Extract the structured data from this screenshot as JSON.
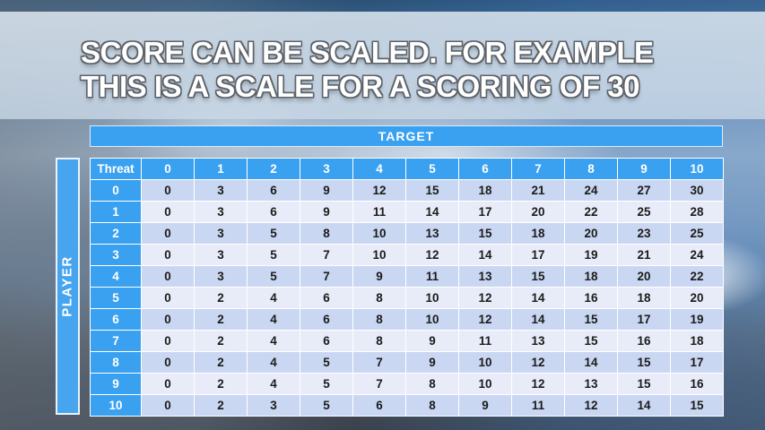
{
  "title": {
    "line1": "SCORE CAN BE SCALED. FOR EXAMPLE",
    "line2": "THIS IS A SCALE FOR A SCORING OF 30"
  },
  "table": {
    "target_label": "TARGET",
    "player_label": "PLAYER",
    "corner_label": "Threat",
    "column_headers": [
      "0",
      "1",
      "2",
      "3",
      "4",
      "5",
      "6",
      "7",
      "8",
      "9",
      "10"
    ],
    "row_headers": [
      "0",
      "1",
      "2",
      "3",
      "4",
      "5",
      "6",
      "7",
      "8",
      "9",
      "10"
    ],
    "rows": [
      [
        0,
        3,
        6,
        9,
        12,
        15,
        18,
        21,
        24,
        27,
        30
      ],
      [
        0,
        3,
        6,
        9,
        11,
        14,
        17,
        20,
        22,
        25,
        28
      ],
      [
        0,
        3,
        5,
        8,
        10,
        13,
        15,
        18,
        20,
        23,
        25
      ],
      [
        0,
        3,
        5,
        7,
        10,
        12,
        14,
        17,
        19,
        21,
        24
      ],
      [
        0,
        3,
        5,
        7,
        9,
        11,
        13,
        15,
        18,
        20,
        22
      ],
      [
        0,
        2,
        4,
        6,
        8,
        10,
        12,
        14,
        16,
        18,
        20
      ],
      [
        0,
        2,
        4,
        6,
        8,
        10,
        12,
        14,
        15,
        17,
        19
      ],
      [
        0,
        2,
        4,
        6,
        8,
        9,
        11,
        13,
        15,
        16,
        18
      ],
      [
        0,
        2,
        4,
        5,
        7,
        9,
        10,
        12,
        14,
        15,
        17
      ],
      [
        0,
        2,
        4,
        5,
        7,
        8,
        10,
        12,
        13,
        15,
        16
      ],
      [
        0,
        2,
        3,
        5,
        6,
        8,
        9,
        11,
        12,
        14,
        15
      ]
    ]
  },
  "colors": {
    "header_blue": "#3aa1f0",
    "row_dark": "#cad7f2",
    "row_light": "#e7ecf8",
    "title_fill": "#ffffff",
    "title_outline": "#5d6268"
  }
}
